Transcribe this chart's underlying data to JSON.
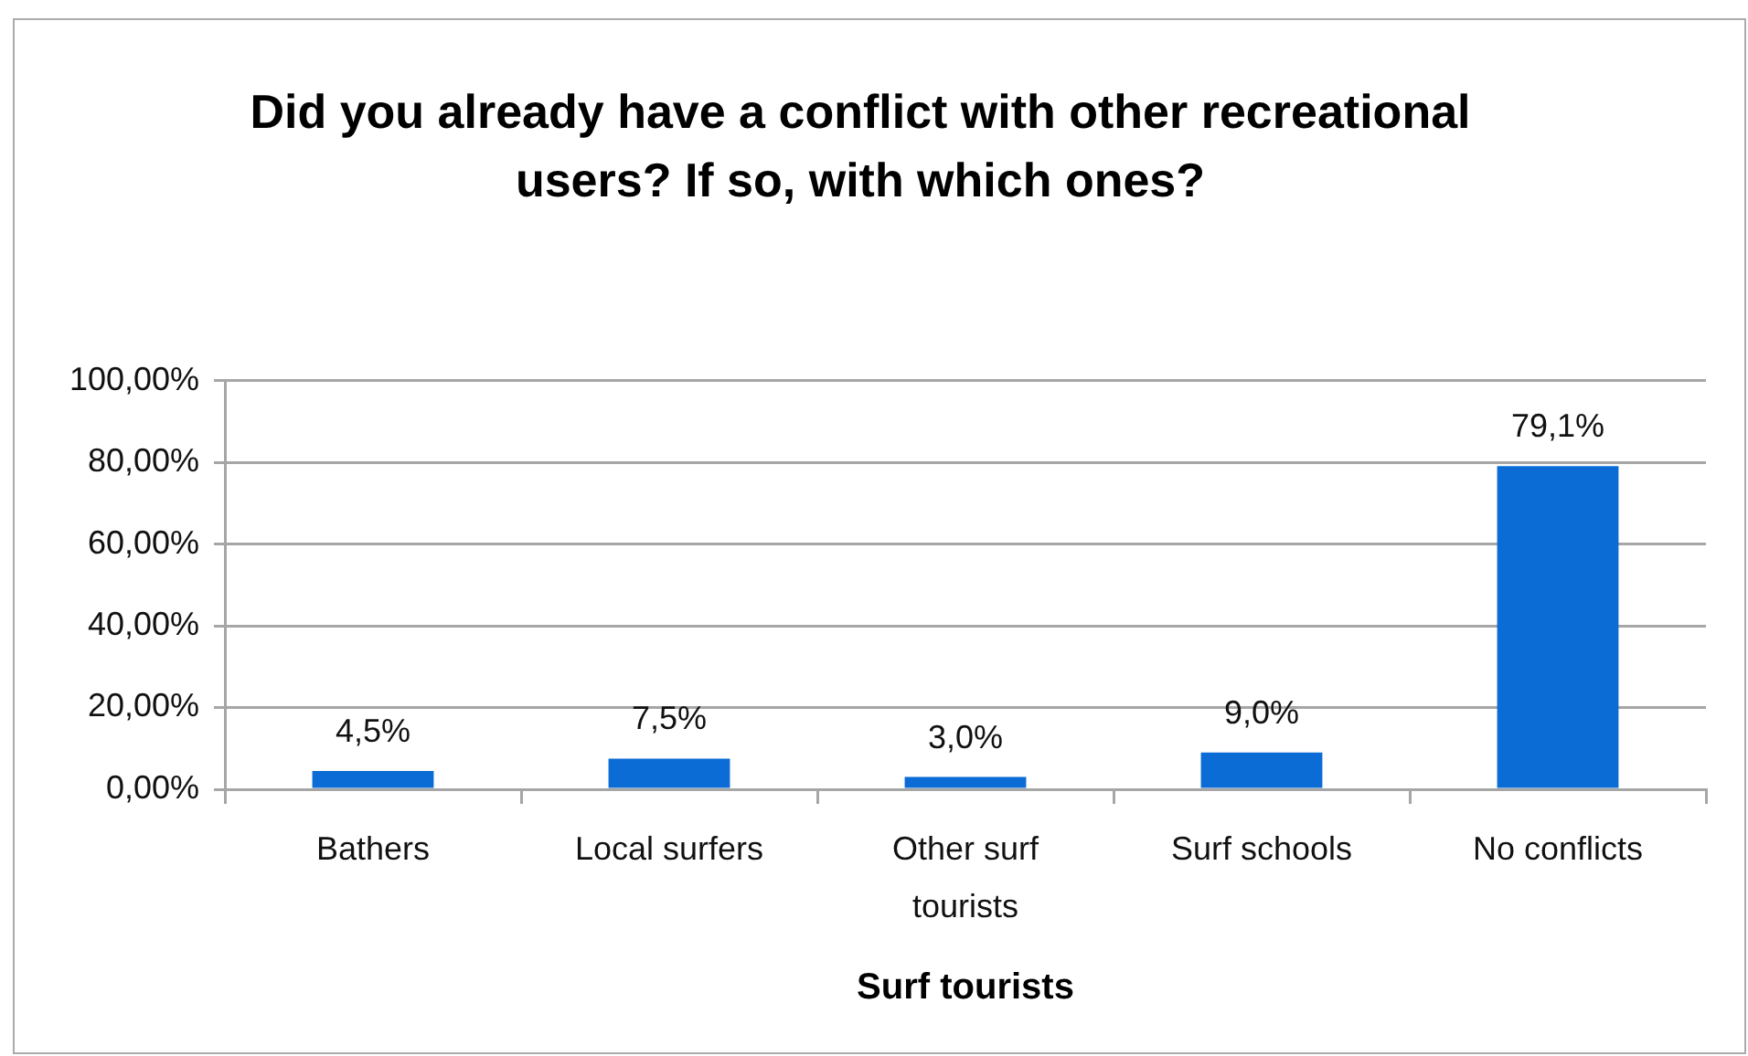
{
  "chart_data": {
    "type": "bar",
    "title": "Did you already have a conflict with other recreational users? If so, with which ones?",
    "xlabel": "Surf tourists",
    "categories": [
      "Bathers",
      "Local surfers",
      "Other surf tourists",
      "Surf schools",
      "No conflicts"
    ],
    "values": [
      4.5,
      7.5,
      3.0,
      9.0,
      79.1
    ],
    "value_labels": [
      "4,5%",
      "7,5%",
      "3,0%",
      "9,0%",
      "79,1%"
    ],
    "color": "#0a6cd4",
    "ylim": [
      0,
      100
    ],
    "yticks": [
      {
        "value": 0,
        "label": "0,00%"
      },
      {
        "value": 20,
        "label": "20,00%"
      },
      {
        "value": 40,
        "label": "40,00%"
      },
      {
        "value": 60,
        "label": "60,00%"
      },
      {
        "value": 80,
        "label": "80,00%"
      },
      {
        "value": 100,
        "label": "100,00%"
      }
    ],
    "grid": "y"
  }
}
